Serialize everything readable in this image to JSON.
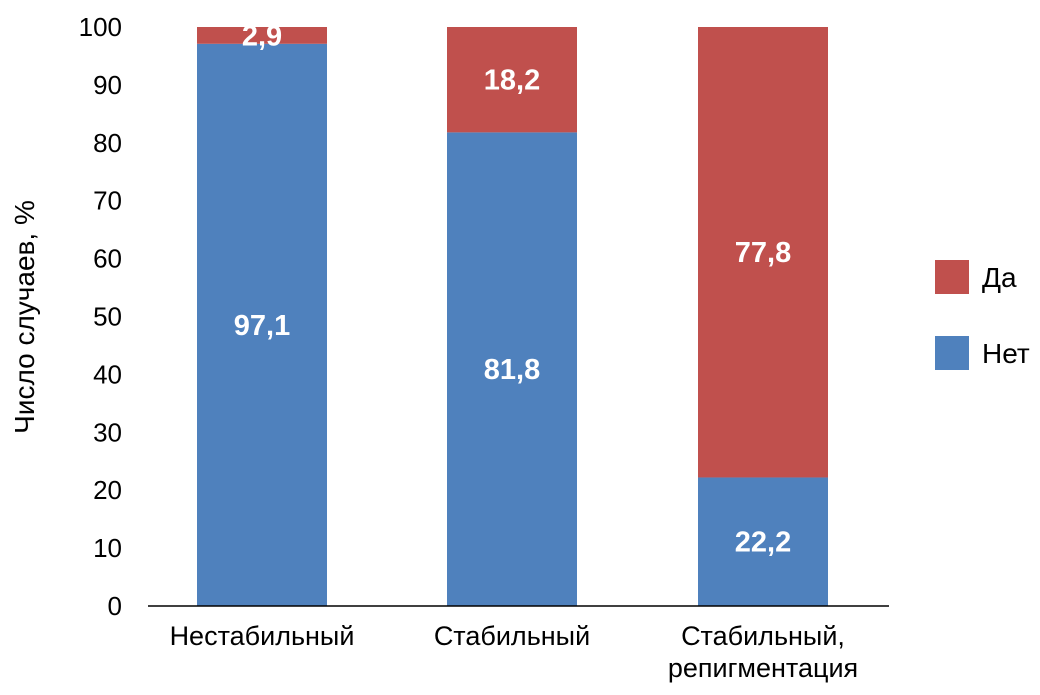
{
  "chart_data": {
    "type": "bar",
    "stacked": true,
    "categories": [
      [
        "Нестабильный"
      ],
      [
        "Стабильный"
      ],
      [
        "Стабильный,",
        "репигментация"
      ]
    ],
    "series": [
      {
        "name": "Нет",
        "color": "#4F81BD",
        "values": [
          97.1,
          81.8,
          22.2
        ],
        "labels": [
          "97,1",
          "81,8",
          "22,2"
        ]
      },
      {
        "name": "Да",
        "color": "#C0504D",
        "values": [
          2.9,
          18.2,
          77.8
        ],
        "labels": [
          "2,9",
          "18,2",
          "77,8"
        ]
      }
    ],
    "ylabel": "Число случаев, %",
    "ylim": [
      0,
      100
    ],
    "yticks": [
      "0",
      "10",
      "20",
      "30",
      "40",
      "50",
      "60",
      "70",
      "80",
      "90",
      "100"
    ],
    "grid": false,
    "legend": {
      "position": "right",
      "order": [
        "Да",
        "Нет"
      ]
    }
  }
}
